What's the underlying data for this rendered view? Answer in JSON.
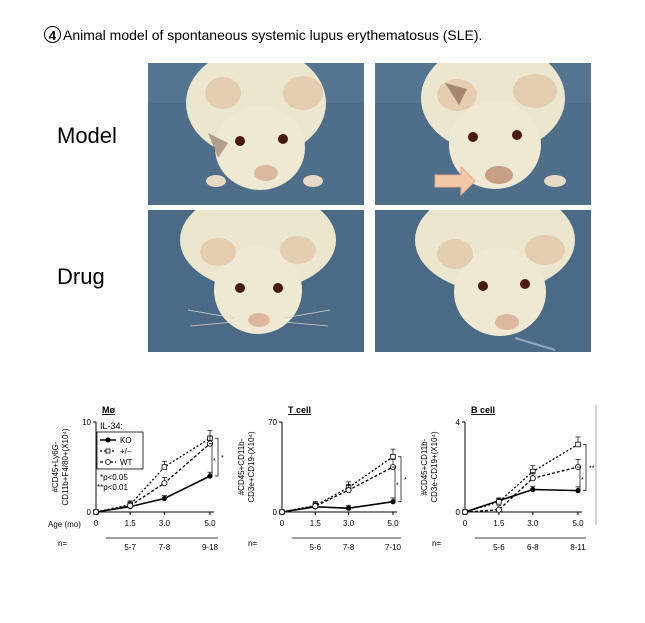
{
  "header": {
    "number": "4",
    "title": "Animal model of spontaneous systemic lupus erythematosus (SLE)."
  },
  "photos": {
    "row_labels": [
      "Model",
      "Drug"
    ]
  },
  "x_axis": {
    "label": "Age (mo)",
    "ticks": [
      "0",
      "1.5",
      "3.0",
      "5.0"
    ],
    "n_label": "n="
  },
  "legend": {
    "heading": "IL-34:",
    "entries": [
      "KO",
      "+/−",
      "WT"
    ]
  },
  "significance": {
    "p1": "*p<0.05",
    "p2": "**p<0.01",
    "star": "*",
    "dstar": "**"
  },
  "colors": {
    "photo_bg": "#4a6a86",
    "mouse": "#ece6cf",
    "line": "#000000"
  },
  "chart_data": [
    {
      "type": "line",
      "title": "Mø",
      "ylabel": "#CD45+Ly6G-CD11b+F4/80+(X10⁴)",
      "ylim": [
        0,
        10
      ],
      "yticks": [
        "0",
        "10"
      ],
      "x": [
        0,
        1.5,
        3.0,
        5.0
      ],
      "n": [
        "5-7",
        "7-8",
        "9-18"
      ],
      "series": [
        {
          "name": "KO",
          "values": [
            0,
            0.6,
            1.5,
            4.0
          ]
        },
        {
          "name": "+/−",
          "values": [
            0,
            0.8,
            5.0,
            8.2
          ]
        },
        {
          "name": "WT",
          "values": [
            0,
            0.7,
            3.2,
            7.6
          ]
        }
      ]
    },
    {
      "type": "line",
      "title": "T cell",
      "ylabel": "#CD45+CD11b-CD3e+CD19-(X10⁴)",
      "ylim": [
        0,
        70
      ],
      "yticks": [
        "0",
        "70"
      ],
      "x": [
        0,
        1.5,
        3.0,
        5.0
      ],
      "n": [
        "5-6",
        "7-8",
        "7-10"
      ],
      "series": [
        {
          "name": "KO",
          "values": [
            0,
            4,
            3,
            8
          ]
        },
        {
          "name": "+/−",
          "values": [
            0,
            5,
            19,
            43
          ]
        },
        {
          "name": "WT",
          "values": [
            0,
            4.5,
            17,
            35
          ]
        }
      ]
    },
    {
      "type": "line",
      "title": "B cell",
      "ylabel": "#CD45+CD11b-CD3e-CD19+(X10⁴)",
      "ylim": [
        0,
        4
      ],
      "yticks": [
        "0",
        "4"
      ],
      "x": [
        0,
        1.5,
        3.0,
        5.0
      ],
      "n": [
        "5-6",
        "6-8",
        "8-11"
      ],
      "series": [
        {
          "name": "KO",
          "values": [
            0,
            0.5,
            1.0,
            0.95
          ]
        },
        {
          "name": "+/−",
          "values": [
            0,
            0.45,
            1.8,
            3.0
          ]
        },
        {
          "name": "WT",
          "values": [
            0,
            0.1,
            1.5,
            2.0
          ]
        }
      ]
    }
  ]
}
